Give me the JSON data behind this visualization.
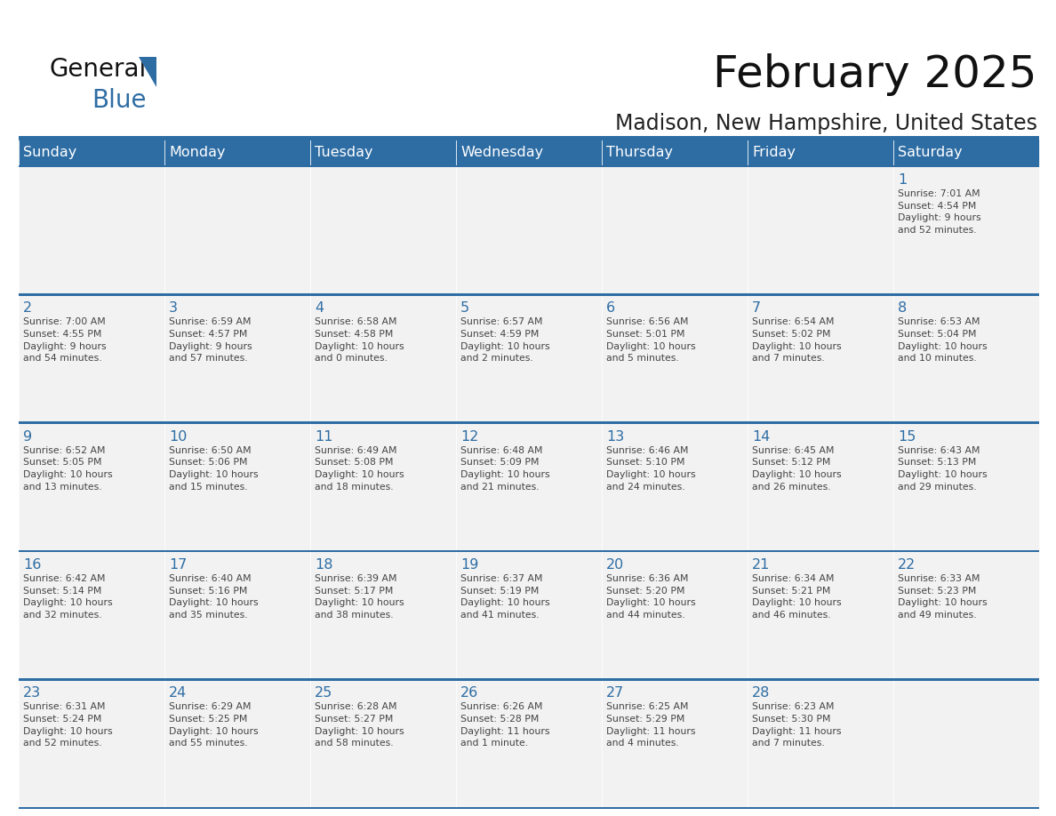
{
  "title": "February 2025",
  "subtitle": "Madison, New Hampshire, United States",
  "header_color": "#2E6DA4",
  "header_text_color": "#FFFFFF",
  "cell_bg_color": "#F2F2F2",
  "cell_bg_white": "#FFFFFF",
  "border_color": "#2E6DA4",
  "day_number_color": "#2E6DA4",
  "text_color": "#444444",
  "days_of_week": [
    "Sunday",
    "Monday",
    "Tuesday",
    "Wednesday",
    "Thursday",
    "Friday",
    "Saturday"
  ],
  "weeks": [
    [
      {
        "day": 0,
        "info": ""
      },
      {
        "day": 0,
        "info": ""
      },
      {
        "day": 0,
        "info": ""
      },
      {
        "day": 0,
        "info": ""
      },
      {
        "day": 0,
        "info": ""
      },
      {
        "day": 0,
        "info": ""
      },
      {
        "day": 1,
        "info": "Sunrise: 7:01 AM\nSunset: 4:54 PM\nDaylight: 9 hours\nand 52 minutes."
      }
    ],
    [
      {
        "day": 2,
        "info": "Sunrise: 7:00 AM\nSunset: 4:55 PM\nDaylight: 9 hours\nand 54 minutes."
      },
      {
        "day": 3,
        "info": "Sunrise: 6:59 AM\nSunset: 4:57 PM\nDaylight: 9 hours\nand 57 minutes."
      },
      {
        "day": 4,
        "info": "Sunrise: 6:58 AM\nSunset: 4:58 PM\nDaylight: 10 hours\nand 0 minutes."
      },
      {
        "day": 5,
        "info": "Sunrise: 6:57 AM\nSunset: 4:59 PM\nDaylight: 10 hours\nand 2 minutes."
      },
      {
        "day": 6,
        "info": "Sunrise: 6:56 AM\nSunset: 5:01 PM\nDaylight: 10 hours\nand 5 minutes."
      },
      {
        "day": 7,
        "info": "Sunrise: 6:54 AM\nSunset: 5:02 PM\nDaylight: 10 hours\nand 7 minutes."
      },
      {
        "day": 8,
        "info": "Sunrise: 6:53 AM\nSunset: 5:04 PM\nDaylight: 10 hours\nand 10 minutes."
      }
    ],
    [
      {
        "day": 9,
        "info": "Sunrise: 6:52 AM\nSunset: 5:05 PM\nDaylight: 10 hours\nand 13 minutes."
      },
      {
        "day": 10,
        "info": "Sunrise: 6:50 AM\nSunset: 5:06 PM\nDaylight: 10 hours\nand 15 minutes."
      },
      {
        "day": 11,
        "info": "Sunrise: 6:49 AM\nSunset: 5:08 PM\nDaylight: 10 hours\nand 18 minutes."
      },
      {
        "day": 12,
        "info": "Sunrise: 6:48 AM\nSunset: 5:09 PM\nDaylight: 10 hours\nand 21 minutes."
      },
      {
        "day": 13,
        "info": "Sunrise: 6:46 AM\nSunset: 5:10 PM\nDaylight: 10 hours\nand 24 minutes."
      },
      {
        "day": 14,
        "info": "Sunrise: 6:45 AM\nSunset: 5:12 PM\nDaylight: 10 hours\nand 26 minutes."
      },
      {
        "day": 15,
        "info": "Sunrise: 6:43 AM\nSunset: 5:13 PM\nDaylight: 10 hours\nand 29 minutes."
      }
    ],
    [
      {
        "day": 16,
        "info": "Sunrise: 6:42 AM\nSunset: 5:14 PM\nDaylight: 10 hours\nand 32 minutes."
      },
      {
        "day": 17,
        "info": "Sunrise: 6:40 AM\nSunset: 5:16 PM\nDaylight: 10 hours\nand 35 minutes."
      },
      {
        "day": 18,
        "info": "Sunrise: 6:39 AM\nSunset: 5:17 PM\nDaylight: 10 hours\nand 38 minutes."
      },
      {
        "day": 19,
        "info": "Sunrise: 6:37 AM\nSunset: 5:19 PM\nDaylight: 10 hours\nand 41 minutes."
      },
      {
        "day": 20,
        "info": "Sunrise: 6:36 AM\nSunset: 5:20 PM\nDaylight: 10 hours\nand 44 minutes."
      },
      {
        "day": 21,
        "info": "Sunrise: 6:34 AM\nSunset: 5:21 PM\nDaylight: 10 hours\nand 46 minutes."
      },
      {
        "day": 22,
        "info": "Sunrise: 6:33 AM\nSunset: 5:23 PM\nDaylight: 10 hours\nand 49 minutes."
      }
    ],
    [
      {
        "day": 23,
        "info": "Sunrise: 6:31 AM\nSunset: 5:24 PM\nDaylight: 10 hours\nand 52 minutes."
      },
      {
        "day": 24,
        "info": "Sunrise: 6:29 AM\nSunset: 5:25 PM\nDaylight: 10 hours\nand 55 minutes."
      },
      {
        "day": 25,
        "info": "Sunrise: 6:28 AM\nSunset: 5:27 PM\nDaylight: 10 hours\nand 58 minutes."
      },
      {
        "day": 26,
        "info": "Sunrise: 6:26 AM\nSunset: 5:28 PM\nDaylight: 11 hours\nand 1 minute."
      },
      {
        "day": 27,
        "info": "Sunrise: 6:25 AM\nSunset: 5:29 PM\nDaylight: 11 hours\nand 4 minutes."
      },
      {
        "day": 28,
        "info": "Sunrise: 6:23 AM\nSunset: 5:30 PM\nDaylight: 11 hours\nand 7 minutes."
      },
      {
        "day": 0,
        "info": ""
      }
    ]
  ]
}
